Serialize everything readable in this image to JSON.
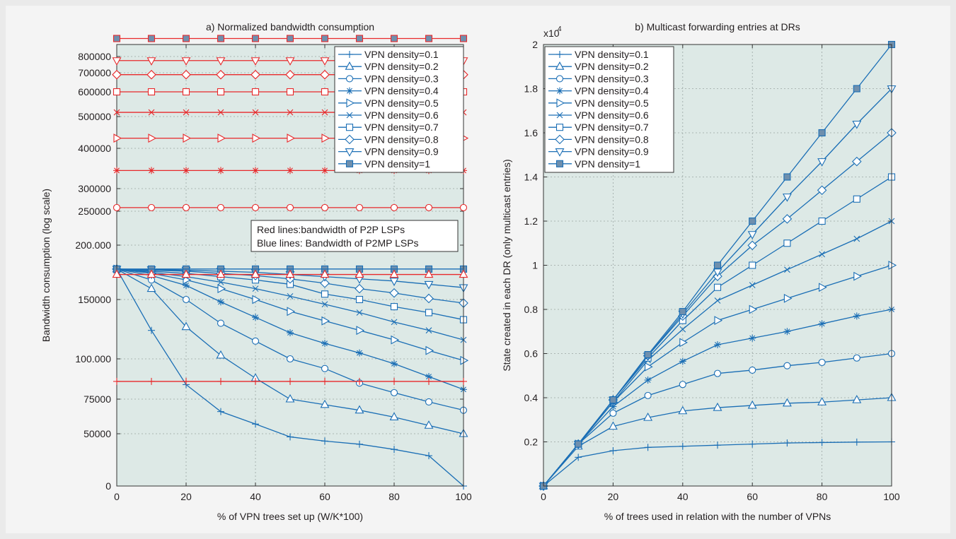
{
  "chart_data": [
    {
      "type": "line",
      "title": "a) Normalized  bandwidth consumption",
      "xlabel": "% of VPN trees set up (W/K*100)",
      "ylabel": "Bandwidth consumption (log scale)",
      "xlim": [
        0,
        100
      ],
      "ylim": [
        0,
        820000
      ],
      "y_scale": "log",
      "x_ticks": [
        0,
        20,
        40,
        60,
        80,
        100
      ],
      "y_ticks": [
        {
          "value": 0,
          "label": "0"
        },
        {
          "value": 50000,
          "label": "50000"
        },
        {
          "value": 75000,
          "label": "75000"
        },
        {
          "value": 100000,
          "label": "100.000"
        },
        {
          "value": 150000,
          "label": "150000"
        },
        {
          "value": 200000,
          "label": "200.000"
        },
        {
          "value": 250000,
          "label": "250000"
        },
        {
          "value": 300000,
          "label": "300000"
        },
        {
          "value": 400000,
          "label": "400000"
        },
        {
          "value": 500000,
          "label": "500000"
        },
        {
          "value": 600000,
          "label": "600000"
        },
        {
          "value": 700000,
          "label": "700000"
        },
        {
          "value": 800000,
          "label": "800000"
        }
      ],
      "grid": true,
      "legend_position": "top-right",
      "annotation": [
        "Red lines:bandwidth of P2P LSPs",
        "Blue lines: Bandwidth of P2MP LSPs"
      ],
      "colors": {
        "blue": "#1a6eb5",
        "red": "#e8292b",
        "plot_bg": "#dde9e6",
        "label": "#231f20"
      },
      "x": [
        0,
        10,
        20,
        30,
        40,
        50,
        60,
        70,
        80,
        90,
        100
      ],
      "series": [
        {
          "name": "VPN density=0.1",
          "marker": "plus",
          "color": "blue",
          "values": [
            178000,
            124000,
            84000,
            66000,
            57000,
            47000,
            43000,
            40000,
            35000,
            29000,
            0
          ]
        },
        {
          "name": "VPN density=0.2",
          "marker": "triangle-up",
          "color": "blue",
          "values": [
            178000,
            160000,
            127000,
            103000,
            88000,
            75000,
            71000,
            67000,
            62000,
            56000,
            50000
          ]
        },
        {
          "name": "VPN density=0.3",
          "marker": "circle",
          "color": "blue",
          "values": [
            178000,
            168000,
            150000,
            130000,
            115000,
            100000,
            94000,
            85000,
            79000,
            73000,
            67000
          ]
        },
        {
          "name": "VPN density=0.4",
          "marker": "asterisk",
          "color": "blue",
          "values": [
            178000,
            172000,
            163000,
            148000,
            135000,
            122000,
            113000,
            105000,
            97000,
            89000,
            81000
          ]
        },
        {
          "name": "VPN density=0.5",
          "marker": "triangle-right",
          "color": "blue",
          "values": [
            178000,
            174000,
            168000,
            160000,
            150000,
            140000,
            132000,
            124000,
            116000,
            107000,
            99000
          ]
        },
        {
          "name": "VPN density=0.6",
          "marker": "cross",
          "color": "blue",
          "values": [
            178000,
            175000,
            171000,
            166000,
            160000,
            153000,
            146000,
            139000,
            131000,
            124000,
            116000
          ]
        },
        {
          "name": "VPN density=0.7",
          "marker": "square",
          "color": "blue",
          "values": [
            178000,
            176000,
            174000,
            171000,
            168000,
            164000,
            155000,
            150000,
            144000,
            139000,
            133000
          ]
        },
        {
          "name": "VPN density=0.8",
          "marker": "diamond",
          "color": "blue",
          "values": [
            178000,
            177000,
            176000,
            174000,
            172000,
            169000,
            165000,
            160000,
            156000,
            151000,
            147000
          ]
        },
        {
          "name": "VPN density=0.9",
          "marker": "triangle-down",
          "color": "blue",
          "values": [
            178000,
            177500,
            177000,
            176000,
            175000,
            173000,
            171000,
            169000,
            167000,
            164000,
            161000
          ]
        },
        {
          "name": "VPN density=1",
          "marker": "square-filled",
          "color": "blue",
          "values": [
            178000,
            178000,
            178000,
            178000,
            178000,
            178000,
            178000,
            178000,
            178000,
            178000,
            178000
          ]
        }
      ],
      "p2p_series": [
        {
          "marker": "plus",
          "color": "red",
          "value": 86000
        },
        {
          "marker": "triangle-up",
          "color": "red",
          "value": 173000
        },
        {
          "marker": "circle",
          "color": "red",
          "value": 258000
        },
        {
          "marker": "asterisk",
          "color": "red",
          "value": 345000
        },
        {
          "marker": "triangle-right",
          "color": "red",
          "value": 432000
        },
        {
          "marker": "cross",
          "color": "red",
          "value": 517000
        },
        {
          "marker": "square",
          "color": "red",
          "value": 600000
        },
        {
          "marker": "diamond",
          "color": "red",
          "value": 690000
        },
        {
          "marker": "triangle-down",
          "color": "red",
          "value": 775000
        },
        {
          "marker": "square-filled",
          "color": "red",
          "value": 830000
        }
      ]
    },
    {
      "type": "line",
      "title": "b) Multicast forwarding entries at DRs",
      "xlabel": "% of trees used in relation with the number of VPNs",
      "ylabel": "State created in each DR (only multicast entries)",
      "y_multiplier": "x10",
      "y_multiplier_exp": "4",
      "xlim": [
        0,
        100
      ],
      "ylim": [
        0,
        2
      ],
      "x_ticks": [
        0,
        20,
        40,
        60,
        80,
        100
      ],
      "y_ticks": [
        {
          "value": 0.2,
          "label": "0.2"
        },
        {
          "value": 0.4,
          "label": "0.4"
        },
        {
          "value": 0.6,
          "label": "0.6"
        },
        {
          "value": 0.8,
          "label": "0.8"
        },
        {
          "value": 1,
          "label": "1"
        },
        {
          "value": 1.2,
          "label": "1.2"
        },
        {
          "value": 1.4,
          "label": "1.4"
        },
        {
          "value": 1.6,
          "label": "1.6"
        },
        {
          "value": 1.8,
          "label": "1.8"
        },
        {
          "value": 2,
          "label": "2"
        }
      ],
      "grid": true,
      "legend_position": "top-left",
      "x": [
        0,
        10,
        20,
        30,
        40,
        50,
        60,
        70,
        80,
        90,
        100
      ],
      "series": [
        {
          "name": "VPN density=0.1",
          "marker": "plus",
          "values": [
            0,
            0.13,
            0.16,
            0.175,
            0.18,
            0.185,
            0.19,
            0.195,
            0.197,
            0.199,
            0.2
          ]
        },
        {
          "name": "VPN density=0.2",
          "marker": "triangle-up",
          "values": [
            0,
            0.18,
            0.27,
            0.31,
            0.34,
            0.355,
            0.365,
            0.375,
            0.38,
            0.39,
            0.4
          ]
        },
        {
          "name": "VPN density=0.3",
          "marker": "circle",
          "values": [
            0,
            0.19,
            0.33,
            0.41,
            0.46,
            0.51,
            0.525,
            0.545,
            0.56,
            0.58,
            0.6
          ]
        },
        {
          "name": "VPN density=0.4",
          "marker": "asterisk",
          "values": [
            0,
            0.19,
            0.36,
            0.48,
            0.565,
            0.64,
            0.67,
            0.7,
            0.735,
            0.77,
            0.8
          ]
        },
        {
          "name": "VPN density=0.5",
          "marker": "triangle-right",
          "values": [
            0,
            0.19,
            0.38,
            0.54,
            0.65,
            0.75,
            0.8,
            0.85,
            0.9,
            0.95,
            1.0
          ]
        },
        {
          "name": "VPN density=0.6",
          "marker": "cross",
          "values": [
            0,
            0.19,
            0.38,
            0.57,
            0.71,
            0.84,
            0.91,
            0.98,
            1.05,
            1.12,
            1.2
          ]
        },
        {
          "name": "VPN density=0.7",
          "marker": "square",
          "values": [
            0,
            0.19,
            0.39,
            0.58,
            0.75,
            0.9,
            1.0,
            1.1,
            1.2,
            1.3,
            1.4
          ]
        },
        {
          "name": "VPN density=0.8",
          "marker": "diamond",
          "values": [
            0,
            0.19,
            0.39,
            0.59,
            0.77,
            0.95,
            1.09,
            1.21,
            1.34,
            1.47,
            1.6
          ]
        },
        {
          "name": "VPN density=0.9",
          "marker": "triangle-down",
          "values": [
            0,
            0.19,
            0.39,
            0.59,
            0.78,
            0.97,
            1.14,
            1.31,
            1.47,
            1.64,
            1.8
          ]
        },
        {
          "name": "VPN density=1",
          "marker": "square-filled",
          "values": [
            0,
            0.19,
            0.39,
            0.595,
            0.79,
            1.0,
            1.2,
            1.4,
            1.6,
            1.8,
            2.0
          ]
        }
      ]
    }
  ]
}
